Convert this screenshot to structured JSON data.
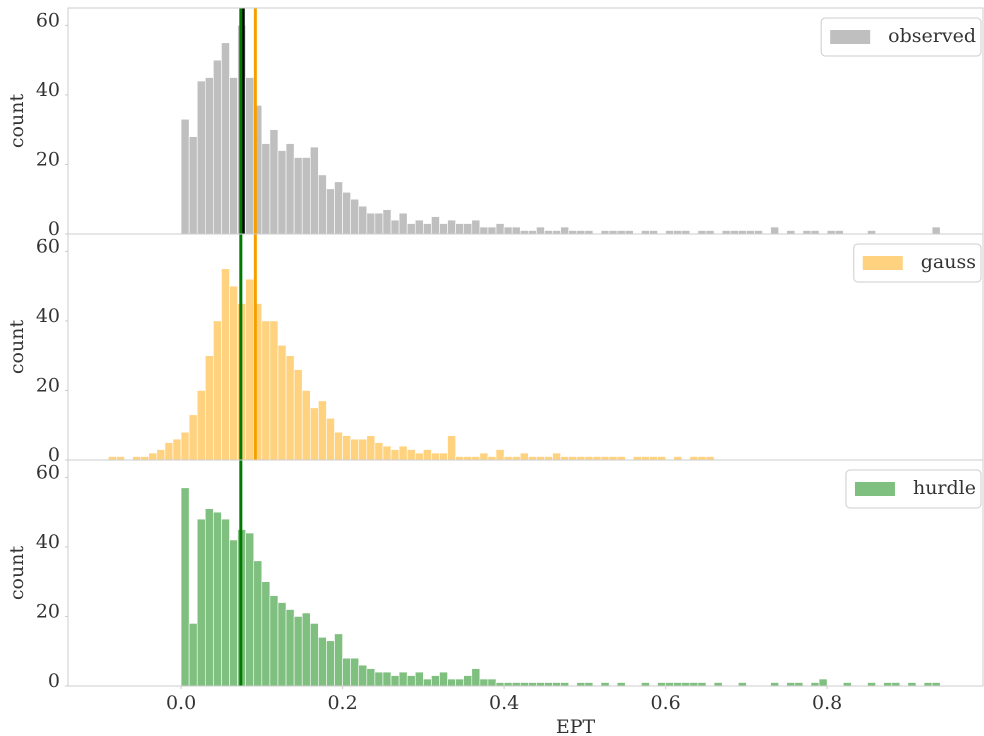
{
  "chart_data": [
    {
      "type": "histogram",
      "name": "observed",
      "color": "gray",
      "ylabel": "count",
      "ylim": [
        0,
        65
      ],
      "yticks": [
        0,
        20,
        40,
        60
      ],
      "xlim": [
        -0.14,
        0.993
      ],
      "legend": "upper right",
      "bins": [
        0,
        0.01,
        0.02,
        0.03,
        0.04,
        0.05,
        0.06,
        0.07,
        0.08,
        0.09,
        0.1,
        0.11,
        0.12,
        0.13,
        0.14,
        0.15,
        0.16,
        0.17,
        0.18,
        0.19,
        0.2,
        0.21,
        0.22,
        0.23,
        0.24,
        0.25,
        0.26,
        0.27,
        0.28,
        0.29,
        0.3,
        0.31,
        0.32,
        0.33,
        0.34,
        0.35,
        0.36,
        0.37,
        0.38,
        0.39,
        0.4,
        0.41,
        0.42,
        0.43,
        0.44,
        0.45,
        0.46,
        0.47,
        0.48,
        0.49,
        0.5,
        0.51,
        0.52,
        0.53,
        0.54,
        0.55,
        0.56,
        0.57,
        0.58,
        0.59,
        0.6,
        0.61,
        0.62,
        0.63,
        0.64,
        0.65,
        0.66,
        0.67,
        0.68,
        0.69,
        0.7,
        0.71,
        0.72,
        0.73,
        0.74,
        0.75,
        0.76,
        0.77,
        0.78,
        0.79,
        0.8,
        0.81,
        0.82,
        0.83,
        0.84,
        0.85,
        0.86,
        0.87,
        0.88,
        0.89,
        0.9,
        0.91,
        0.92,
        0.93,
        0.94
      ],
      "counts": [
        33,
        28,
        44,
        45,
        50,
        55,
        45,
        60,
        45,
        37,
        26,
        30,
        24,
        26,
        22,
        22,
        25,
        17,
        13,
        15,
        12,
        10,
        8,
        6,
        6,
        7,
        4,
        6,
        3,
        4,
        3,
        5,
        3,
        4,
        3,
        3,
        4,
        2,
        2,
        3,
        2,
        2,
        1,
        1,
        2,
        1,
        1,
        2,
        1,
        1,
        1,
        0,
        1,
        1,
        1,
        1,
        0,
        1,
        1,
        0,
        1,
        1,
        1,
        0,
        1,
        1,
        0,
        1,
        1,
        1,
        1,
        1,
        0,
        2,
        0,
        1,
        0,
        1,
        1,
        0,
        1,
        1,
        0,
        0,
        0,
        1,
        0,
        0,
        0,
        0,
        0,
        0,
        0,
        2
      ],
      "vlines": [
        {
          "x": 0.077,
          "color": "#000000"
        },
        {
          "x": 0.074,
          "color": "#007a00"
        },
        {
          "x": 0.092,
          "color": "#f5a000"
        }
      ]
    },
    {
      "type": "histogram",
      "name": "gauss",
      "color": "orange",
      "ylabel": "count",
      "ylim": [
        0,
        65
      ],
      "yticks": [
        0,
        20,
        40,
        60
      ],
      "xlim": [
        -0.14,
        0.993
      ],
      "legend": "upper right",
      "bins": [
        -0.09,
        -0.08,
        -0.07,
        -0.06,
        -0.05,
        -0.04,
        -0.03,
        -0.02,
        -0.01,
        0,
        0.01,
        0.02,
        0.03,
        0.04,
        0.05,
        0.06,
        0.07,
        0.08,
        0.09,
        0.1,
        0.11,
        0.12,
        0.13,
        0.14,
        0.15,
        0.16,
        0.17,
        0.18,
        0.19,
        0.2,
        0.21,
        0.22,
        0.23,
        0.24,
        0.25,
        0.26,
        0.27,
        0.28,
        0.29,
        0.3,
        0.31,
        0.32,
        0.33,
        0.34,
        0.35,
        0.36,
        0.37,
        0.38,
        0.39,
        0.4,
        0.41,
        0.42,
        0.43,
        0.44,
        0.45,
        0.46,
        0.47,
        0.48,
        0.49,
        0.5,
        0.51,
        0.52,
        0.53,
        0.54,
        0.55,
        0.56,
        0.57,
        0.58,
        0.59,
        0.6,
        0.61,
        0.62,
        0.63,
        0.64,
        0.65,
        0.66
      ],
      "counts": [
        1,
        1,
        0,
        1,
        1,
        2,
        3,
        5,
        6,
        8,
        13,
        20,
        30,
        40,
        55,
        50,
        45,
        52,
        45,
        40,
        40,
        33,
        30,
        26,
        20,
        15,
        17,
        12,
        8,
        7,
        6,
        6,
        7,
        5,
        4,
        3,
        4,
        3,
        2,
        3,
        2,
        2,
        7,
        1,
        1,
        1,
        2,
        1,
        3,
        1,
        1,
        2,
        1,
        1,
        1,
        2,
        1,
        1,
        1,
        1,
        1,
        1,
        1,
        1,
        0,
        1,
        1,
        1,
        1,
        0,
        1,
        0,
        1,
        1,
        1
      ],
      "vlines": [
        {
          "x": 0.074,
          "color": "#007a00"
        },
        {
          "x": 0.092,
          "color": "#f5a000"
        }
      ]
    },
    {
      "type": "histogram",
      "name": "hurdle",
      "color": "green",
      "ylabel": "count",
      "ylim": [
        0,
        65
      ],
      "yticks": [
        0,
        20,
        40,
        60
      ],
      "xlim": [
        -0.14,
        0.993
      ],
      "legend": "upper right",
      "xlabel": "EPT",
      "xticks": [
        {
          "value": 0,
          "label": "0.0"
        },
        0.2,
        0.4,
        0.6,
        0.8
      ],
      "bins": [
        0,
        0.01,
        0.02,
        0.03,
        0.04,
        0.05,
        0.06,
        0.07,
        0.08,
        0.09,
        0.1,
        0.11,
        0.12,
        0.13,
        0.14,
        0.15,
        0.16,
        0.17,
        0.18,
        0.19,
        0.2,
        0.21,
        0.22,
        0.23,
        0.24,
        0.25,
        0.26,
        0.27,
        0.28,
        0.29,
        0.3,
        0.31,
        0.32,
        0.33,
        0.34,
        0.35,
        0.36,
        0.37,
        0.38,
        0.39,
        0.4,
        0.41,
        0.42,
        0.43,
        0.44,
        0.45,
        0.46,
        0.47,
        0.48,
        0.49,
        0.5,
        0.51,
        0.52,
        0.53,
        0.54,
        0.55,
        0.56,
        0.57,
        0.58,
        0.59,
        0.6,
        0.61,
        0.62,
        0.63,
        0.64,
        0.65,
        0.66,
        0.67,
        0.68,
        0.69,
        0.7,
        0.71,
        0.72,
        0.73,
        0.74,
        0.75,
        0.76,
        0.77,
        0.78,
        0.79,
        0.8,
        0.81,
        0.82,
        0.83,
        0.84,
        0.85,
        0.86,
        0.87,
        0.88,
        0.89,
        0.9,
        0.91,
        0.92,
        0.93,
        0.94
      ],
      "counts": [
        57,
        18,
        48,
        51,
        50,
        48,
        42,
        45,
        44,
        36,
        30,
        26,
        24,
        22,
        20,
        21,
        18,
        14,
        13,
        15,
        8,
        8,
        6,
        5,
        4,
        4,
        3,
        4,
        3,
        4,
        2,
        3,
        4,
        2,
        2,
        3,
        5,
        2,
        2,
        1,
        1,
        1,
        1,
        1,
        1,
        1,
        1,
        1,
        0,
        1,
        1,
        0,
        1,
        0,
        1,
        0,
        0,
        1,
        0,
        1,
        1,
        1,
        1,
        1,
        1,
        0,
        1,
        0,
        0,
        1,
        0,
        0,
        0,
        1,
        0,
        1,
        1,
        0,
        1,
        2,
        0,
        0,
        1,
        0,
        0,
        1,
        0,
        1,
        1,
        0,
        1,
        0,
        1,
        1
      ],
      "vlines": [
        {
          "x": 0.074,
          "color": "#007a00"
        }
      ]
    }
  ]
}
